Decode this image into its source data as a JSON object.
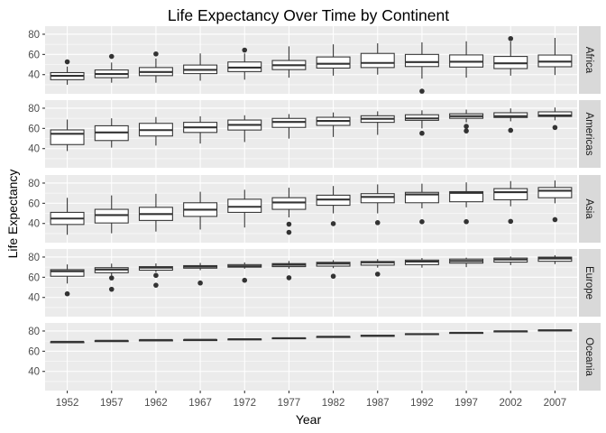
{
  "chart_data": {
    "type": "boxplot",
    "title": "Life Expectancy Over Time by Continent",
    "xlabel": "Year",
    "ylabel": "Life Expectancy",
    "categories": [
      "1952",
      "1957",
      "1962",
      "1967",
      "1972",
      "1977",
      "1982",
      "1987",
      "1992",
      "1997",
      "2002",
      "2007"
    ],
    "ylim": [
      21,
      88
    ],
    "y_ticks": [
      40,
      60,
      80
    ],
    "grid": true,
    "facets": [
      {
        "name": "Africa",
        "boxes": [
          {
            "x": "1952",
            "low": 30,
            "q1": 35,
            "median": 38.8,
            "q3": 42,
            "high": 48,
            "outliers": [
              52.7
            ]
          },
          {
            "x": "1957",
            "low": 32,
            "q1": 37,
            "median": 40.6,
            "q3": 44.6,
            "high": 52,
            "outliers": [
              58
            ]
          },
          {
            "x": "1962",
            "low": 32,
            "q1": 39,
            "median": 42.6,
            "q3": 47,
            "high": 56,
            "outliers": [
              60.5
            ]
          },
          {
            "x": "1967",
            "low": 34,
            "q1": 41,
            "median": 44.7,
            "q3": 49.5,
            "high": 61,
            "outliers": []
          },
          {
            "x": "1972",
            "low": 35,
            "q1": 43,
            "median": 47,
            "q3": 52.5,
            "high": 61,
            "outliers": [
              64.3
            ]
          },
          {
            "x": "1977",
            "low": 37,
            "q1": 45,
            "median": 49.3,
            "q3": 54,
            "high": 68,
            "outliers": []
          },
          {
            "x": "1982",
            "low": 39,
            "q1": 46.5,
            "median": 50.8,
            "q3": 57.5,
            "high": 70,
            "outliers": []
          },
          {
            "x": "1987",
            "low": 40,
            "q1": 47,
            "median": 51.6,
            "q3": 61,
            "high": 71,
            "outliers": []
          },
          {
            "x": "1992",
            "low": 36,
            "q1": 48,
            "median": 52.4,
            "q3": 60,
            "high": 72,
            "outliers": [
              23.6
            ]
          },
          {
            "x": "1997",
            "low": 37,
            "q1": 47.5,
            "median": 52.8,
            "q3": 59.5,
            "high": 73,
            "outliers": []
          },
          {
            "x": "2002",
            "low": 39,
            "q1": 46,
            "median": 51.2,
            "q3": 58,
            "high": 72.8,
            "outliers": [
              75.7
            ]
          },
          {
            "x": "2007",
            "low": 39.6,
            "q1": 47.8,
            "median": 52.9,
            "q3": 59.4,
            "high": 76.4,
            "outliers": []
          }
        ]
      },
      {
        "name": "Americas",
        "boxes": [
          {
            "x": "1952",
            "low": 37.6,
            "q1": 44,
            "median": 54.7,
            "q3": 58.5,
            "high": 68.8,
            "outliers": []
          },
          {
            "x": "1957",
            "low": 41,
            "q1": 48,
            "median": 56,
            "q3": 62.6,
            "high": 70,
            "outliers": []
          },
          {
            "x": "1962",
            "low": 43,
            "q1": 52.5,
            "median": 58.3,
            "q3": 65,
            "high": 71.3,
            "outliers": []
          },
          {
            "x": "1967",
            "low": 45,
            "q1": 56,
            "median": 61,
            "q3": 66,
            "high": 72,
            "outliers": []
          },
          {
            "x": "1972",
            "low": 46.5,
            "q1": 58.4,
            "median": 63.5,
            "q3": 68.3,
            "high": 73,
            "outliers": []
          },
          {
            "x": "1977",
            "low": 49.9,
            "q1": 61,
            "median": 66.4,
            "q3": 69.9,
            "high": 74.2,
            "outliers": []
          },
          {
            "x": "1982",
            "low": 51.5,
            "q1": 63,
            "median": 67.4,
            "q3": 71,
            "high": 75.8,
            "outliers": []
          },
          {
            "x": "1987",
            "low": 53.6,
            "q1": 66,
            "median": 69.5,
            "q3": 72.5,
            "high": 76.9,
            "outliers": []
          },
          {
            "x": "1992",
            "low": 60,
            "q1": 68,
            "median": 69.9,
            "q3": 73.5,
            "high": 77.9,
            "outliers": [
              55.2
            ]
          },
          {
            "x": "1997",
            "low": 66,
            "q1": 70,
            "median": 72.1,
            "q3": 74.5,
            "high": 78.6,
            "outliers": [
              62,
              57.5
            ]
          },
          {
            "x": "2002",
            "low": 67,
            "q1": 70.8,
            "median": 72.1,
            "q3": 75.5,
            "high": 79.8,
            "outliers": [
              58.1
            ]
          },
          {
            "x": "2007",
            "low": 68,
            "q1": 71.8,
            "median": 72.9,
            "q3": 76.4,
            "high": 80.7,
            "outliers": [
              60.9
            ]
          }
        ]
      },
      {
        "name": "Asia",
        "boxes": [
          {
            "x": "1952",
            "low": 28.8,
            "q1": 39,
            "median": 44.9,
            "q3": 51,
            "high": 65.4,
            "outliers": []
          },
          {
            "x": "1957",
            "low": 30.3,
            "q1": 40.5,
            "median": 48.3,
            "q3": 54,
            "high": 67.8,
            "outliers": []
          },
          {
            "x": "1962",
            "low": 32,
            "q1": 43,
            "median": 49.3,
            "q3": 56,
            "high": 69.4,
            "outliers": []
          },
          {
            "x": "1967",
            "low": 34,
            "q1": 47,
            "median": 53.7,
            "q3": 60.5,
            "high": 71.4,
            "outliers": []
          },
          {
            "x": "1972",
            "low": 36,
            "q1": 51,
            "median": 56.5,
            "q3": 64,
            "high": 73.4,
            "outliers": []
          },
          {
            "x": "1977",
            "low": 46,
            "q1": 54,
            "median": 60.8,
            "q3": 65.5,
            "high": 75.4,
            "outliers": [
              39.3,
              31.2
            ]
          },
          {
            "x": "1982",
            "low": 50,
            "q1": 58,
            "median": 63.7,
            "q3": 68,
            "high": 77.1,
            "outliers": [
              39.8
            ]
          },
          {
            "x": "1987",
            "low": 50,
            "q1": 60.5,
            "median": 66.3,
            "q3": 69.5,
            "high": 78.7,
            "outliers": [
              40.8
            ]
          },
          {
            "x": "1992",
            "low": 55,
            "q1": 60.5,
            "median": 68.7,
            "q3": 70.8,
            "high": 79.4,
            "outliers": [
              41.7
            ]
          },
          {
            "x": "1997",
            "low": 56,
            "q1": 61.5,
            "median": 70.3,
            "q3": 71.5,
            "high": 80.7,
            "outliers": [
              41.8
            ]
          },
          {
            "x": "2002",
            "low": 57,
            "q1": 63.5,
            "median": 71,
            "q3": 74.5,
            "high": 82,
            "outliers": [
              42.1
            ]
          },
          {
            "x": "2007",
            "low": 60,
            "q1": 65.5,
            "median": 72.4,
            "q3": 75.6,
            "high": 82.6,
            "outliers": [
              43.8
            ]
          }
        ]
      },
      {
        "name": "Europe",
        "boxes": [
          {
            "x": "1952",
            "low": 53.8,
            "q1": 61,
            "median": 65.9,
            "q3": 67.5,
            "high": 72.7,
            "outliers": [
              43.6
            ]
          },
          {
            "x": "1957",
            "low": 60.5,
            "q1": 64.5,
            "median": 67.6,
            "q3": 69.5,
            "high": 73.5,
            "outliers": [
              59.3,
              48.1
            ]
          },
          {
            "x": "1962",
            "low": 65,
            "q1": 67,
            "median": 69.5,
            "q3": 70.5,
            "high": 73.7,
            "outliers": [
              61.8,
              52.1
            ]
          },
          {
            "x": "1967",
            "low": 67,
            "q1": 69,
            "median": 70.6,
            "q3": 71.5,
            "high": 74.2,
            "outliers": [
              54.3
            ]
          },
          {
            "x": "1972",
            "low": 68.5,
            "q1": 70,
            "median": 70.9,
            "q3": 72.5,
            "high": 74.7,
            "outliers": [
              57
            ]
          },
          {
            "x": "1977",
            "low": 68.5,
            "q1": 70.5,
            "median": 72.3,
            "q3": 73.5,
            "high": 76.1,
            "outliers": [
              59.5
            ]
          },
          {
            "x": "1982",
            "low": 69,
            "q1": 71,
            "median": 73.5,
            "q3": 74.8,
            "high": 76.99,
            "outliers": [
              61
            ]
          },
          {
            "x": "1987",
            "low": 69.5,
            "q1": 72,
            "median": 74.8,
            "q3": 75.6,
            "high": 77.9,
            "outliers": [
              63.1
            ]
          },
          {
            "x": "1992",
            "low": 69.5,
            "q1": 72.5,
            "median": 75.5,
            "q3": 77,
            "high": 79,
            "outliers": []
          },
          {
            "x": "1997",
            "low": 70,
            "q1": 74,
            "median": 76.1,
            "q3": 78,
            "high": 79.4,
            "outliers": []
          },
          {
            "x": "2002",
            "low": 72,
            "q1": 75,
            "median": 77.5,
            "q3": 79,
            "high": 80.6,
            "outliers": []
          },
          {
            "x": "2007",
            "low": 73,
            "q1": 75.8,
            "median": 78.6,
            "q3": 79.9,
            "high": 81.8,
            "outliers": []
          }
        ]
      },
      {
        "name": "Oceania",
        "boxes": [
          {
            "x": "1952",
            "low": 69.1,
            "q1": 69.2,
            "median": 69.3,
            "q3": 69.3,
            "high": 69.4,
            "outliers": []
          },
          {
            "x": "1957",
            "low": 70.2,
            "q1": 70.3,
            "median": 70.3,
            "q3": 70.4,
            "high": 70.5,
            "outliers": []
          },
          {
            "x": "1962",
            "low": 70.9,
            "q1": 71,
            "median": 71.1,
            "q3": 71.1,
            "high": 71.2,
            "outliers": []
          },
          {
            "x": "1967",
            "low": 71.1,
            "q1": 71.2,
            "median": 71.3,
            "q3": 71.4,
            "high": 71.5,
            "outliers": []
          },
          {
            "x": "1972",
            "low": 71.8,
            "q1": 71.9,
            "median": 71.9,
            "q3": 72.1,
            "high": 72.2,
            "outliers": []
          },
          {
            "x": "1977",
            "low": 72.2,
            "q1": 72.6,
            "median": 72.9,
            "q3": 73.2,
            "high": 73.5,
            "outliers": []
          },
          {
            "x": "1982",
            "low": 73.8,
            "q1": 74.1,
            "median": 74.3,
            "q3": 74.5,
            "high": 74.7,
            "outliers": []
          },
          {
            "x": "1987",
            "low": 74.3,
            "q1": 74.7,
            "median": 75.3,
            "q3": 75.8,
            "high": 76.3,
            "outliers": []
          },
          {
            "x": "1992",
            "low": 76.3,
            "q1": 76.5,
            "median": 76.9,
            "q3": 77.3,
            "high": 77.6,
            "outliers": []
          },
          {
            "x": "1997",
            "low": 77.6,
            "q1": 77.9,
            "median": 78.2,
            "q3": 78.5,
            "high": 78.8,
            "outliers": []
          },
          {
            "x": "2002",
            "low": 79.1,
            "q1": 79.4,
            "median": 79.7,
            "q3": 80,
            "high": 80.4,
            "outliers": []
          },
          {
            "x": "2007",
            "low": 80.2,
            "q1": 80.5,
            "median": 80.7,
            "q3": 81,
            "high": 81.2,
            "outliers": []
          }
        ]
      }
    ]
  }
}
